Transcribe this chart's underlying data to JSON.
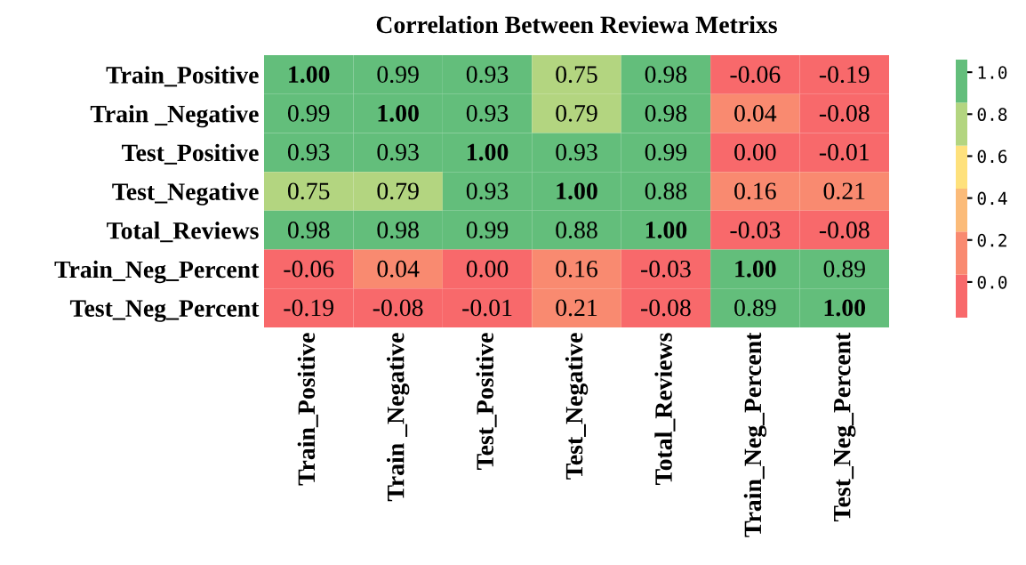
{
  "chart_data": {
    "type": "heatmap",
    "title": "Correlation Between Reviewa Metrixs",
    "categories": [
      "Train_Positive",
      "Train _Negative",
      "Test_Positive",
      "Test_Negative",
      "Total_Reviews",
      "Train_Neg_Percent",
      "Test_Neg_Percent"
    ],
    "y_categories": [
      "Train_Positive",
      "Train _Negative",
      "Test_Positive",
      "Test_Negative",
      "Total_Reviews",
      "Train_Neg_Percent",
      "Test_Neg_Percent"
    ],
    "cells": [
      [
        1.0,
        0.99,
        0.93,
        0.75,
        0.98,
        -0.06,
        -0.19
      ],
      [
        0.99,
        1.0,
        0.93,
        0.79,
        0.98,
        0.04,
        -0.08
      ],
      [
        0.93,
        0.93,
        1.0,
        0.93,
        0.99,
        0.0,
        -0.01
      ],
      [
        0.75,
        0.79,
        0.93,
        1.0,
        0.88,
        0.16,
        0.21
      ],
      [
        0.98,
        0.98,
        0.99,
        0.88,
        1.0,
        -0.03,
        -0.08
      ],
      [
        -0.06,
        0.04,
        0.0,
        0.16,
        -0.03,
        1.0,
        0.89
      ],
      [
        -0.19,
        -0.08,
        -0.01,
        0.21,
        -0.08,
        0.89,
        1.0
      ]
    ],
    "cell_labels": [
      [
        "1.00",
        "0.99",
        "0.93",
        "0.75",
        "0.98",
        "-0.06",
        "-0.19"
      ],
      [
        "0.99",
        "1.00",
        "0.93",
        "0.79",
        "0.98",
        "0.04",
        "-0.08"
      ],
      [
        "0.93",
        "0.93",
        "1.00",
        "0.93",
        "0.99",
        "0.00",
        "-0.01"
      ],
      [
        "0.75",
        "0.79",
        "0.93",
        "1.00",
        "0.88",
        "0.16",
        "0.21"
      ],
      [
        "0.98",
        "0.98",
        "0.99",
        "0.88",
        "1.00",
        "-0.03",
        "-0.08"
      ],
      [
        "-0.06",
        "0.04",
        "0.00",
        "0.16",
        "-0.03",
        "1.00",
        "0.89"
      ],
      [
        "-0.19",
        "-0.08",
        "-0.01",
        "0.21",
        "-0.08",
        "0.89",
        "1.00"
      ]
    ],
    "colors": [
      "#f8696b",
      "#f98a70",
      "#fbbb79",
      "#fee17c",
      "#b3d580",
      "#63be7b"
    ],
    "clim": [
      -0.17,
      1.06
    ],
    "cticks": [
      {
        "value": 1.0,
        "label": "1.0"
      },
      {
        "value": 0.8,
        "label": "0.8"
      },
      {
        "value": 0.6,
        "label": "0.6"
      },
      {
        "value": 0.4,
        "label": "0.4"
      },
      {
        "value": 0.2,
        "label": "0.2"
      },
      {
        "value": 0.0,
        "label": "0.0"
      }
    ]
  }
}
